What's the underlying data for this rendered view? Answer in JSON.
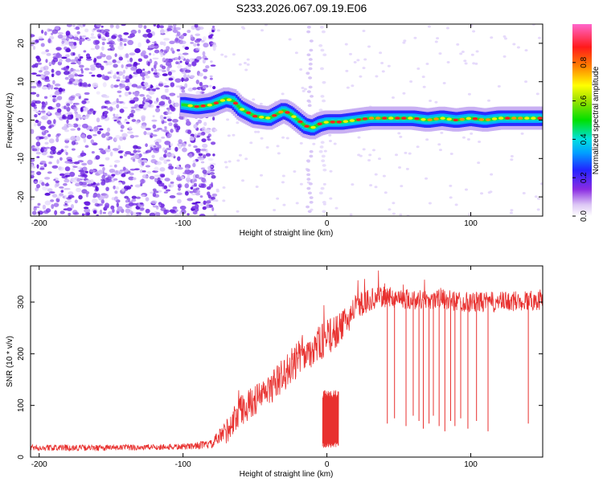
{
  "title": "S233.2026.067.09.19.E06",
  "colors": {
    "snr_line": "#e8302e",
    "frame": "#000000",
    "background": "#ffffff"
  },
  "chart_data": [
    {
      "type": "heatmap",
      "title": "S233.2026.067.09.19.E06",
      "xlabel": "Height of straight line (km)",
      "ylabel": "Frequency (Hz)",
      "xlim": [
        -206,
        150
      ],
      "ylim": [
        -25,
        25
      ],
      "xticks": [
        -200,
        -100,
        0,
        100
      ],
      "xtick_labels": [
        "-200",
        "-100",
        "0",
        "100"
      ],
      "yticks": [
        -20,
        -10,
        0,
        10,
        20
      ],
      "ytick_labels": [
        "-20",
        "-10",
        "0",
        "10",
        "20"
      ],
      "colorbar": {
        "label": "Normalized spectral amplitude",
        "range": [
          0,
          1
        ],
        "ticks": [
          0.0,
          0.2,
          0.4,
          0.6,
          0.8
        ],
        "tick_labels": [
          "0.0",
          "0.2",
          "0.4",
          "0.6",
          "0.8"
        ]
      },
      "ridge": {
        "description": "dominant frequency track",
        "x": [
          -100,
          -90,
          -80,
          -70,
          -65,
          -60,
          -50,
          -40,
          -35,
          -30,
          -25,
          -20,
          -15,
          -10,
          -5,
          0,
          10,
          20,
          30,
          40,
          50,
          60,
          70,
          80,
          90,
          100,
          110,
          120,
          130,
          140,
          150
        ],
        "y": [
          4,
          3.5,
          4,
          5.5,
          5,
          3,
          1,
          0.5,
          1.5,
          2.5,
          1.5,
          0,
          -1.5,
          -2,
          -1,
          -0.5,
          -0.5,
          0,
          0.5,
          0.5,
          0.5,
          0.5,
          0,
          0.5,
          0,
          0.5,
          0,
          0.5,
          0.5,
          0.5,
          0.5
        ]
      }
    },
    {
      "type": "line",
      "xlabel": "Height of straight line (km)",
      "ylabel": "SNR (10 * v/v)",
      "xlim": [
        -206,
        150
      ],
      "ylim": [
        0,
        370
      ],
      "xticks": [
        -200,
        -100,
        0,
        100
      ],
      "xtick_labels": [
        "-200",
        "-100",
        "0",
        "100"
      ],
      "yticks": [
        0,
        100,
        200,
        300
      ],
      "ytick_labels": [
        "0",
        "100",
        "200",
        "300"
      ],
      "series": [
        {
          "name": "SNR",
          "envelope_x": [
            -206,
            -150,
            -100,
            -80,
            -70,
            -60,
            -50,
            -40,
            -30,
            -20,
            -10,
            0,
            10,
            20,
            30,
            40,
            60,
            80,
            100,
            120,
            150
          ],
          "envelope_y": [
            18,
            18,
            20,
            25,
            50,
            90,
            110,
            130,
            160,
            190,
            210,
            230,
            250,
            290,
            305,
            310,
            305,
            305,
            300,
            300,
            305
          ],
          "noise_amplitude": [
            6,
            6,
            6,
            8,
            25,
            30,
            30,
            30,
            35,
            35,
            35,
            35,
            30,
            25,
            22,
            20,
            20,
            20,
            20,
            20,
            20
          ],
          "dropouts": [
            {
              "x": 42,
              "y": 65
            },
            {
              "x": 47,
              "y": 75
            },
            {
              "x": 55,
              "y": 60
            },
            {
              "x": 60,
              "y": 80
            },
            {
              "x": 64,
              "y": 70
            },
            {
              "x": 67,
              "y": 55
            },
            {
              "x": 71,
              "y": 65
            },
            {
              "x": 74,
              "y": 80
            },
            {
              "x": 78,
              "y": 60
            },
            {
              "x": 82,
              "y": 50
            },
            {
              "x": 86,
              "y": 70
            },
            {
              "x": 89,
              "y": 60
            },
            {
              "x": 93,
              "y": 75
            },
            {
              "x": 98,
              "y": 55
            },
            {
              "x": 104,
              "y": 70
            },
            {
              "x": 112,
              "y": 50
            },
            {
              "x": 140,
              "y": 65
            }
          ],
          "gap_region": {
            "x0": -3,
            "x1": 8,
            "y_low": 18,
            "y_high": 130
          }
        }
      ]
    }
  ]
}
